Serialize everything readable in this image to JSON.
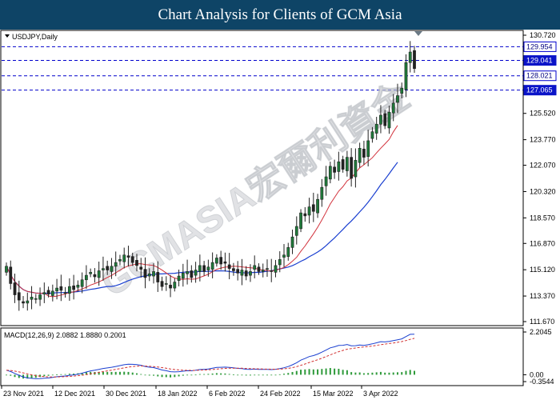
{
  "header": {
    "title": "Chart Analysis for Clients of GCM Asia"
  },
  "main_panel": {
    "symbol_label": "USDJPY,Daily"
  },
  "macd_panel": {
    "label": "MACD(12,26,9) 2.0882 1.8880 0.2001"
  },
  "watermark": {
    "text": "GCMASIA宏爾利資金"
  },
  "colors": {
    "banner": "#0e4466",
    "bull": "#1f7a3a",
    "bear": "#222222",
    "ma_fast": "#d2323c",
    "ma_slow": "#1a3fd0",
    "level_line": "#0000cc",
    "level_label_bg": "#0b14c8",
    "histogram": "#2e9a3a",
    "signal": "#d23232"
  },
  "chart_data": {
    "type": "candlestick",
    "symbol": "USDJPY",
    "timeframe": "Daily",
    "ylim": [
      111.67,
      130.72
    ],
    "price_axis_ticks": [
      "130.720",
      "127.170",
      "125.520",
      "123.770",
      "122.070",
      "120.320",
      "118.570",
      "116.870",
      "115.120",
      "113.370",
      "111.670"
    ],
    "date_ticks": [
      "23 Nov 2021",
      "12 Dec 2021",
      "30 Dec 2021",
      "18 Jan 2022",
      "6 Feb 2022",
      "24 Feb 2022",
      "15 Mar 2022",
      "3 Apr 2022"
    ],
    "horizontal_levels": [
      {
        "value": 129.954,
        "label": "129.954",
        "highlighted": false
      },
      {
        "value": 129.041,
        "label": "129.041",
        "highlighted": true
      },
      {
        "value": 128.021,
        "label": "128.021",
        "highlighted": false
      },
      {
        "value": 127.065,
        "label": "127.065",
        "highlighted": true
      }
    ],
    "closes": [
      115.35,
      114.2,
      113.45,
      113.1,
      112.9,
      113.05,
      113.3,
      113.2,
      113.45,
      113.6,
      113.5,
      113.7,
      113.9,
      113.75,
      113.6,
      114.0,
      113.8,
      114.1,
      114.45,
      114.75,
      114.95,
      114.65,
      115.05,
      115.2,
      115.1,
      115.35,
      115.6,
      115.8,
      116.1,
      115.95,
      115.6,
      115.4,
      115.15,
      114.6,
      114.85,
      115.0,
      114.3,
      114.0,
      114.2,
      113.9,
      114.3,
      114.7,
      114.9,
      115.0,
      114.6,
      115.1,
      115.4,
      115.0,
      115.3,
      115.6,
      115.9,
      115.5,
      115.55,
      115.2,
      115.05,
      114.9,
      115.1,
      114.7,
      115.0,
      115.4,
      115.0,
      115.1,
      115.2,
      115.0,
      115.4,
      115.8,
      116.1,
      116.6,
      117.3,
      118.0,
      118.9,
      118.7,
      119.3,
      119.0,
      119.8,
      120.6,
      121.3,
      122.0,
      121.6,
      122.3,
      121.8,
      122.6,
      121.2,
      122.4,
      123.2,
      122.6,
      123.7,
      124.3,
      124.8,
      125.4,
      124.7,
      125.6,
      126.2,
      126.7,
      127.2,
      128.9,
      129.6,
      128.5
    ],
    "ma_fast_label": "",
    "ma_slow_label": "",
    "macd": {
      "params": "12,26,9",
      "main": 2.0882,
      "signal": 1.888,
      "histogram": 0.2001,
      "axis_ticks": [
        "2.2045",
        "0.00",
        "-0.3544"
      ],
      "ylim": [
        -0.3544,
        2.2045
      ]
    }
  }
}
